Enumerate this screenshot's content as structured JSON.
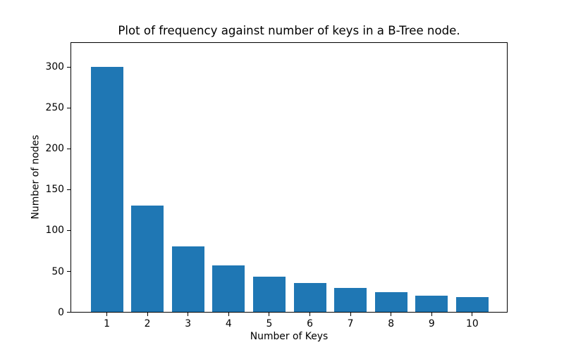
{
  "chart_data": {
    "type": "bar",
    "title": "Plot of frequency against number of keys in a B-Tree node.",
    "xlabel": "Number of Keys",
    "ylabel": "Number of nodes",
    "categories": [
      "1",
      "2",
      "3",
      "4",
      "5",
      "6",
      "7",
      "8",
      "9",
      "10"
    ],
    "values": [
      300,
      130,
      80,
      57,
      43,
      35,
      29,
      24,
      20,
      18
    ],
    "yticks": [
      0,
      50,
      100,
      150,
      200,
      250,
      300
    ],
    "ylim": [
      0,
      330
    ],
    "bar_color": "#1f77b4",
    "axis_color": "#000000",
    "text_color": "#000000",
    "background_color": "#ffffff",
    "bar_width_fraction": 0.8,
    "grid": false,
    "legend": false
  }
}
